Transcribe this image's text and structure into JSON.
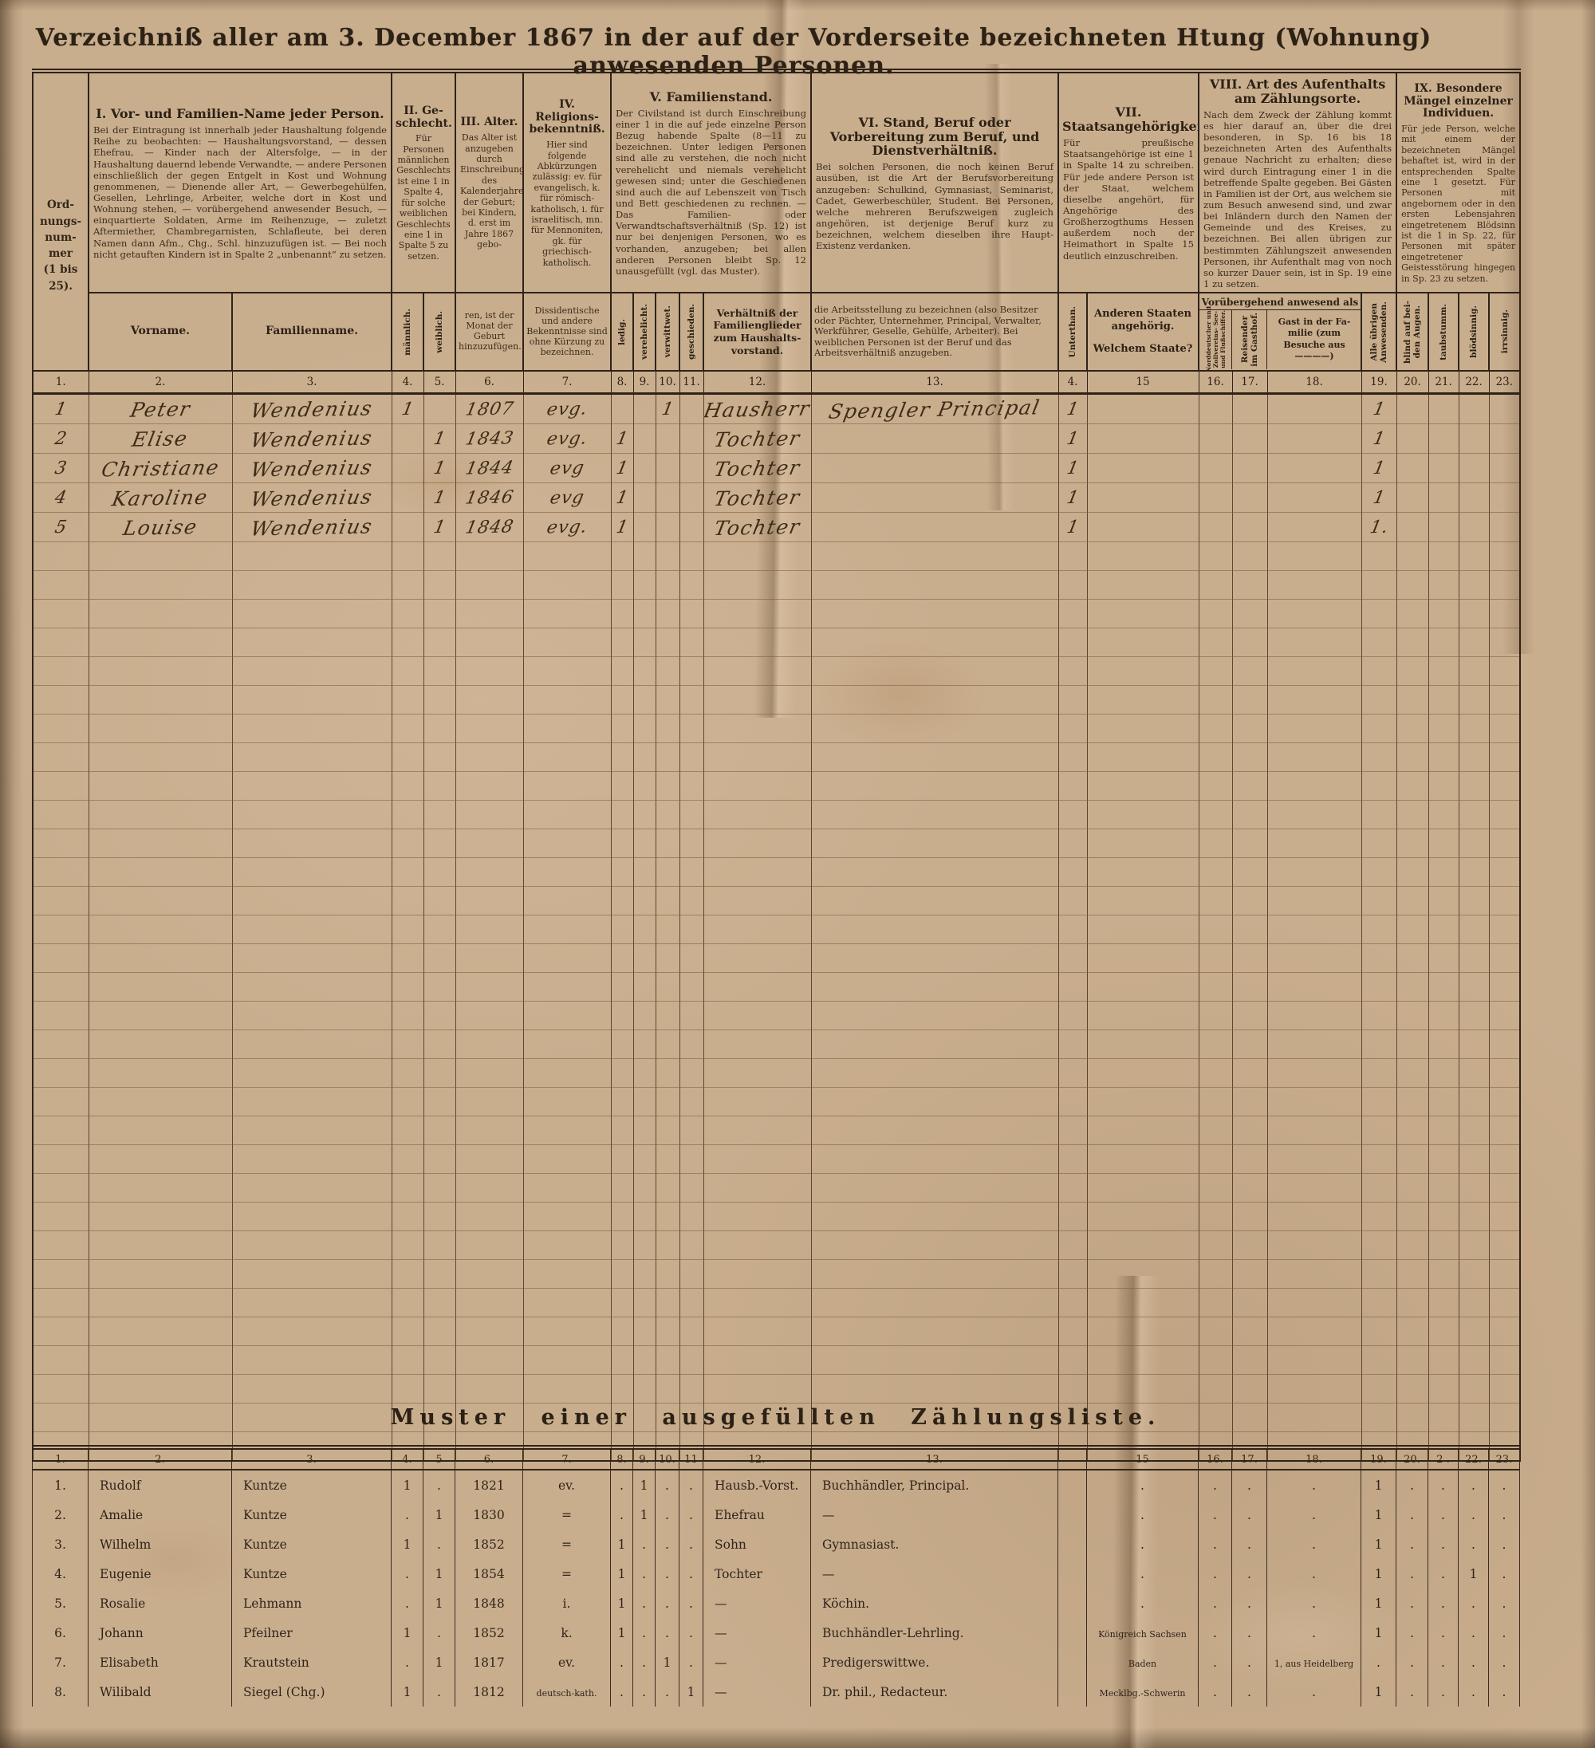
{
  "page": {
    "title": "Verzeichniß aller am 3. December 1867 in der auf der Vorderseite bezeichneten Htung (Wohnung) anwesenden Personen."
  },
  "header": {
    "ord_lines": [
      "Ord-",
      "nungs-",
      "num-",
      "mer",
      "(1 bis",
      "25)."
    ],
    "s1_title": "I. Vor- und Familien-Name jeder Person.",
    "s1_text": "Bei der Eintragung ist innerhalb jeder Haushaltung folgende Reihe zu beobachten: — Haushaltungsvorstand, — dessen Ehefrau, — Kinder nach der Altersfolge, — in der Haushaltung dauernd lebende Verwandte, — andere Personen einschließlich der gegen Entgelt in Kost und Wohnung genommenen, — Dienende aller Art, — Gewerbegehülfen, Gesellen, Lehrlinge, Arbeiter, welche dort in Kost und Wohnung stehen, — vorübergehend anwesender Besuch, — einquartierte Soldaten, Arme im Reihenzuge, — zuletzt Aftermiether, Chambregarnisten, Schlafleute, bei deren Namen dann Afm., Chg., Schl. hinzuzufügen ist. — Bei noch nicht getauften Kindern ist in Spalte 2 „unbenannt“ zu setzen.",
    "s2_title": "II. Ge­schlecht.",
    "s2_text": "Für Personen männlichen Geschlechts ist eine 1 in Spalte 4, für solche weiblichen Geschlechts eine 1 in Spalte 5 zu setzen.",
    "s3_title": "III. Alter.",
    "s3_text": "Das Alter ist anzugeben durch Einschreibung des Kalenderjahres der Geburt; bei Kindern, d. erst im Jahre 1867 gebo-",
    "s3_cont": "ren, ist der Monat der Geburt hinzuzufügen.",
    "s4_title": "IV. Religions­bekenntniß.",
    "s4_text": "Hier sind folgende Abkürzungen zulässig: ev. für evangelisch, k. für römisch-katholisch, i. für israelitisch, mn. für Mennoniten, gk. für griechisch-katholisch.",
    "s4_cont": "Dissidentische und andere Bekenntnisse sind ohne Kürzung zu bezeichnen.",
    "s5_title": "V. Familienstand.",
    "s5_text": "Der Civilstand ist durch Einschreibung einer 1 in die auf jede einzelne Person Bezug habende Spalte (8—11 zu bezeichnen. Unter ledigen Personen sind alle zu verstehen, die noch nicht verehelicht und niemals verehelicht gewesen sind; unter die Geschiedenen sind auch die auf Lebenszeit von Tisch und Bett geschiedenen zu rechnen. — Das Familien- oder Verwandtschaftsverhältniß (Sp. 12) ist nur bei denjenigen Personen, wo es vorhanden, anzugeben; bei allen anderen Personen bleibt Sp. 12 unausgefüllt (vgl. das Muster).",
    "s6_title": "VI. Stand, Beruf oder Vorbereitung zum Beruf, und Dienstverhältniß.",
    "s6_text": "Bei solchen Personen, die noch keinen Beruf ausüben, ist die Art der Berufsvorbereitung anzugeben: Schulkind, Gymnasiast, Seminarist, Cadet, Gewerbeschüler, Student. Bei Personen, welche mehreren Berufszweigen zugleich angehören, ist derjenige Beruf kurz zu bezeichnen, welchem dieselben ihre Haupt-Existenz verdanken.",
    "s6_cont": "die Arbeitsstellung zu bezeichnen (also Besitzer oder Pächter, Unternehmer, Principal, Verwalter, Werkführer, Geselle, Gehülfe, Arbeiter). Bei weiblichen Personen ist der Beruf und das Arbeitsverhältniß anzugeben.",
    "s7_title": "VII. Staatsangehörigkeit.",
    "s7_text": "Für preußische Staatsangehörige ist eine 1 in Spalte 14 zu schreiben. Für jede andere Person ist der Staat, welchem dieselbe angehört, für Angehörige des Großherzogthums Hessen außerdem noch der Heimathort in Spalte 15 deutlich einzuschreiben.",
    "s8_title": "VIII. Art des Aufenthalts am Zählungsorte.",
    "s8_text": "Nach dem Zweck der Zählung kommt es hier darauf an, über die drei besonderen, in Sp. 16 bis 18 bezeichneten Arten des Aufenthalts genaue Nachricht zu erhalten; diese wird durch Eintragung einer 1 in die betreffende Spalte gegeben. Bei Gästen in Familien ist der Ort, aus welchem sie zum Besuch anwesend sind, und zwar bei Inländern durch den Namen der Gemeinde und des Kreises, zu bezeichnen. Bei allen übrigen zur bestimmten Zählungszeit anwesenden Personen, ihr Aufenthalt mag von noch so kurzer Dauer sein, ist in Sp. 19 eine 1 zu setzen.",
    "s9_title": "IX. Besondere Mängel einzelner Individuen.",
    "s9_text": "Für jede Person, welche mit einem der bezeichneten Mängel behaftet ist, wird in der entsprechenden Spalte eine 1 gesetzt. Für Personen mit angebornem oder in den ersten Lebensjahren eingetretenem Blödsinn ist die 1 in Sp. 22, für Personen mit später eingetretener Geistesstörung hingegen in Sp. 23 zu setzen.",
    "vorname": "Vorname.",
    "familienname": "Familienname.",
    "maennlich": [
      "männlich."
    ],
    "weiblich": [
      "weiblich."
    ],
    "ledig": [
      "ledig."
    ],
    "verehelicht": [
      "verehelicht."
    ],
    "verwittwet": [
      "verwittwet."
    ],
    "geschieden": [
      "geschieden."
    ],
    "verhaeltnis": "Verhältniß der Familienglieder zum Haushalts-vorstand.",
    "unterthan": [
      "Unterthan."
    ],
    "staaten_1": "Anderen Staaten angehörig.",
    "staaten_2": "Welchem Staate?",
    "gruppe": "Vorübergehend anwesend als",
    "schiffer": [
      "Norddeutscher und",
      "Zollvereins- See-",
      "und Flußschiffer."
    ],
    "reisender": [
      "Reisender",
      "im Gasthof."
    ],
    "gast": "Gast in der Fa­milie (zum Besuche aus ————)",
    "uebrige": [
      "Alle übrigen",
      "Anwesenden."
    ],
    "blind": [
      "blind auf bei-",
      "den Augen."
    ],
    "taubstumm": [
      "taubstumm."
    ],
    "bloedsinnig": [
      "blödsinnig."
    ],
    "irrsinnig": [
      "irrsinnig."
    ],
    "col_numbers": [
      "1.",
      "2.",
      "3.",
      "4.",
      "5.",
      "6.",
      "7.",
      "8.",
      "9.",
      "10.",
      "11.",
      "12.",
      "13.",
      "4.",
      "15",
      "16.",
      "17.",
      "18.",
      "19.",
      "20.",
      "21.",
      "22.",
      "23."
    ]
  },
  "entries": [
    {
      "nr": "1",
      "vorname": "Peter",
      "familienname": "Wendenius",
      "m": "1",
      "w": "",
      "geb": "1807",
      "rel": "evg.",
      "ledig": "",
      "verehelicht": "",
      "verwittwet": "1",
      "geschieden": "",
      "verhaeltnis": "Hausherr",
      "beruf": "Spengler Principal",
      "unterthan": "1",
      "staat": "",
      "c16": "",
      "c17": "",
      "c18": "",
      "c19": "1",
      "c20": "",
      "c21": "",
      "c22": "",
      "c23": ""
    },
    {
      "nr": "2",
      "vorname": "Elise",
      "familienname": "Wendenius",
      "m": "",
      "w": "1",
      "geb": "1843",
      "rel": "evg.",
      "ledig": "1",
      "verehelicht": "",
      "verwittwet": "",
      "geschieden": "",
      "verhaeltnis": "Tochter",
      "beruf": "",
      "unterthan": "1",
      "staat": "",
      "c16": "",
      "c17": "",
      "c18": "",
      "c19": "1",
      "c20": "",
      "c21": "",
      "c22": "",
      "c23": ""
    },
    {
      "nr": "3",
      "vorname": "Christiane",
      "familienname": "Wendenius",
      "m": "",
      "w": "1",
      "geb": "1844",
      "rel": "evg",
      "ledig": "1",
      "verehelicht": "",
      "verwittwet": "",
      "geschieden": "",
      "verhaeltnis": "Tochter",
      "beruf": "",
      "unterthan": "1",
      "staat": "",
      "c16": "",
      "c17": "",
      "c18": "",
      "c19": "1",
      "c20": "",
      "c21": "",
      "c22": "",
      "c23": ""
    },
    {
      "nr": "4",
      "vorname": "Karoline",
      "familienname": "Wendenius",
      "m": "",
      "w": "1",
      "geb": "1846",
      "rel": "evg",
      "ledig": "1",
      "verehelicht": "",
      "verwittwet": "",
      "geschieden": "",
      "verhaeltnis": "Tochter",
      "beruf": "",
      "unterthan": "1",
      "staat": "",
      "c16": "",
      "c17": "",
      "c18": "",
      "c19": "1",
      "c20": "",
      "c21": "",
      "c22": "",
      "c23": ""
    },
    {
      "nr": "5",
      "vorname": "Louise",
      "familienname": "Wendenius",
      "m": "",
      "w": "1",
      "geb": "1848",
      "rel": "evg.",
      "ledig": "1",
      "verehelicht": "",
      "verwittwet": "",
      "geschieden": "",
      "verhaeltnis": "Tochter",
      "beruf": "",
      "unterthan": "1",
      "staat": "",
      "c16": "",
      "c17": "",
      "c18": "",
      "c19": "1.",
      "c20": "",
      "c21": "",
      "c22": "",
      "c23": ""
    }
  ],
  "muster": {
    "title": "Muster einer ausgefüllten Zählungsliste.",
    "col_numbers": [
      "1.",
      "2.",
      "3.",
      "4.",
      "5",
      "6.",
      "7.",
      "8.",
      "9.",
      "10.",
      "11",
      "12.",
      "13.",
      "",
      "15",
      "16.",
      "17.",
      "18.",
      "19.",
      "20.",
      "2 .",
      "22.",
      "23."
    ],
    "rows": [
      {
        "nr": "1.",
        "vorname": "Rudolf",
        "name": "Kuntze",
        "c4": "1",
        "c5": ".",
        "c6": "1821",
        "c7": "ev.",
        "c8": ".",
        "c9": "1",
        "c10": ".",
        "c11": ".",
        "c12": "Hausb.-Vorst.",
        "c13": "Buchhändler, Principal.",
        "c14": "",
        "c15": ".",
        "c16": ".",
        "c17": ".",
        "c18": ".",
        "c19": "1",
        "c20": ".",
        "c21": ".",
        "c22": ".",
        "c23": "."
      },
      {
        "nr": "2.",
        "vorname": "Amalie",
        "name": "Kuntze",
        "c4": ".",
        "c5": "1",
        "c6": "1830",
        "c7": "=",
        "c8": ".",
        "c9": "1",
        "c10": ".",
        "c11": ".",
        "c12": "Ehefrau",
        "c13": "—",
        "c14": "",
        "c15": ".",
        "c16": ".",
        "c17": ".",
        "c18": ".",
        "c19": "1",
        "c20": ".",
        "c21": ".",
        "c22": ".",
        "c23": "."
      },
      {
        "nr": "3.",
        "vorname": "Wilhelm",
        "name": "Kuntze",
        "c4": "1",
        "c5": ".",
        "c6": "1852",
        "c7": "=",
        "c8": "1",
        "c9": ".",
        "c10": ".",
        "c11": ".",
        "c12": "Sohn",
        "c13": "Gymnasiast.",
        "c14": "",
        "c15": ".",
        "c16": ".",
        "c17": ".",
        "c18": ".",
        "c19": "1",
        "c20": ".",
        "c21": ".",
        "c22": ".",
        "c23": "."
      },
      {
        "nr": "4.",
        "vorname": "Eugenie",
        "name": "Kuntze",
        "c4": ".",
        "c5": "1",
        "c6": "1854",
        "c7": "=",
        "c8": "1",
        "c9": ".",
        "c10": ".",
        "c11": ".",
        "c12": "Tochter",
        "c13": "—",
        "c14": "",
        "c15": ".",
        "c16": ".",
        "c17": ".",
        "c18": ".",
        "c19": "1",
        "c20": ".",
        "c21": ".",
        "c22": "1",
        "c23": "."
      },
      {
        "nr": "5.",
        "vorname": "Rosalie",
        "name": "Lehmann",
        "c4": ".",
        "c5": "1",
        "c6": "1848",
        "c7": "i.",
        "c8": "1",
        "c9": ".",
        "c10": ".",
        "c11": ".",
        "c12": "—",
        "c13": "Köchin.",
        "c14": "",
        "c15": ".",
        "c16": ".",
        "c17": ".",
        "c18": ".",
        "c19": "1",
        "c20": ".",
        "c21": ".",
        "c22": ".",
        "c23": "."
      },
      {
        "nr": "6.",
        "vorname": "Johann",
        "name": "Pfeilner",
        "c4": "1",
        "c5": ".",
        "c6": "1852",
        "c7": "k.",
        "c8": "1",
        "c9": ".",
        "c10": ".",
        "c11": ".",
        "c12": "—",
        "c13": "Buchhändler-Lehrling.",
        "c14": "",
        "c15": "Königreich Sachsen",
        "c16": ".",
        "c17": ".",
        "c18": ".",
        "c19": "1",
        "c20": ".",
        "c21": ".",
        "c22": ".",
        "c23": "."
      },
      {
        "nr": "7.",
        "vorname": "Elisabeth",
        "name": "Krautstein",
        "c4": ".",
        "c5": "1",
        "c6": "1817",
        "c7": "ev.",
        "c8": ".",
        "c9": ".",
        "c10": "1",
        "c11": ".",
        "c12": "—",
        "c13": "Predigerswittwe.",
        "c14": "",
        "c15": "Baden",
        "c16": ".",
        "c17": ".",
        "c18": "1, aus Heidelberg",
        "c19": ".",
        "c20": ".",
        "c21": ".",
        "c22": ".",
        "c23": "."
      },
      {
        "nr": "8.",
        "vorname": "Wilibald",
        "name": "Siegel (Chg.)",
        "c4": "1",
        "c5": ".",
        "c6": "1812",
        "c7": "deutsch-kath.",
        "c8": ".",
        "c9": ".",
        "c10": ".",
        "c11": "1",
        "c12": "—",
        "c13": "Dr. phil., Redacteur.",
        "c14": "",
        "c15": "Mecklbg.-Schwerin",
        "c16": ".",
        "c17": ".",
        "c18": ".",
        "c19": "1",
        "c20": ".",
        "c21": ".",
        "c22": ".",
        "c23": "."
      }
    ]
  }
}
